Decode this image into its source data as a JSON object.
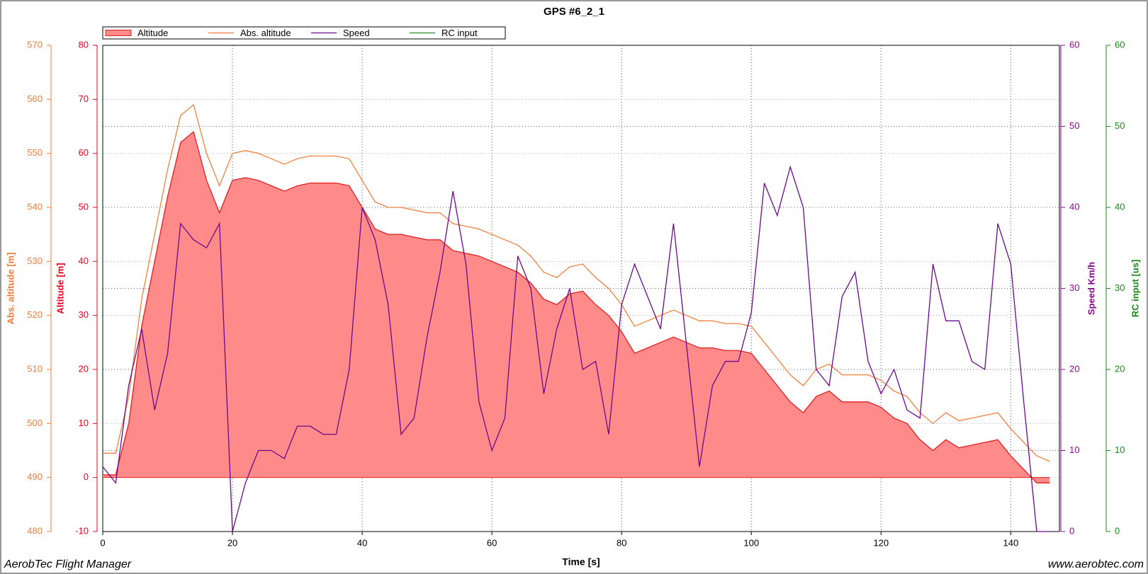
{
  "chart_data": {
    "type": "line",
    "title": "GPS #6_2_1",
    "xlabel": "Time [s]",
    "footer_left": "AerobTec Flight Manager",
    "footer_right": "www.aerobtec.com",
    "xlim": [
      0,
      147.5
    ],
    "xticks": [
      0,
      20,
      40,
      60,
      80,
      100,
      120,
      140
    ],
    "grid": true,
    "axes": [
      {
        "label": "Abs. altitude [m]",
        "lim": [
          480,
          570
        ],
        "ticks": [
          480,
          490,
          500,
          510,
          520,
          530,
          540,
          550,
          560,
          570
        ],
        "color": "#f07c3c",
        "side": "left"
      },
      {
        "label": "Altitude [m]",
        "lim": [
          -10,
          80
        ],
        "ticks": [
          -10,
          0,
          10,
          20,
          30,
          40,
          50,
          60,
          70,
          80
        ],
        "color": "#e8001c",
        "side": "left",
        "grid_color": "#d9a25a"
      },
      {
        "label": "Speed Km/h",
        "lim": [
          0,
          60
        ],
        "ticks": [
          0,
          10,
          20,
          30,
          40,
          50,
          60
        ],
        "color": "#8a0a8f",
        "side": "right",
        "grid_color": "#4f6f4f"
      },
      {
        "label": "RC input [us]",
        "lim": [
          0,
          60
        ],
        "ticks": [
          0,
          10,
          20,
          30,
          40,
          50,
          60
        ],
        "color": "#1a8a1a",
        "side": "right"
      }
    ],
    "x": [
      0,
      2,
      4,
      6,
      8,
      10,
      12,
      14,
      16,
      18,
      20,
      22,
      24,
      26,
      28,
      30,
      32,
      34,
      36,
      38,
      40,
      42,
      44,
      46,
      48,
      50,
      52,
      54,
      56,
      58,
      60,
      62,
      64,
      66,
      68,
      70,
      72,
      74,
      76,
      78,
      80,
      82,
      84,
      86,
      88,
      90,
      92,
      94,
      96,
      98,
      100,
      102,
      104,
      106,
      108,
      110,
      112,
      114,
      116,
      118,
      120,
      122,
      124,
      126,
      128,
      130,
      132,
      134,
      136,
      138,
      140,
      142,
      144,
      146
    ],
    "series": [
      {
        "name": "Altitude",
        "color": "#e02020",
        "fill": "#ff8a8a",
        "area": true,
        "axis": 1,
        "values": [
          0.5,
          0.5,
          10,
          28,
          40,
          52,
          62,
          64,
          55,
          49,
          55,
          55.5,
          55,
          54,
          53,
          54,
          54.5,
          54.5,
          54.5,
          54,
          50,
          46,
          45,
          45,
          44.5,
          44,
          44,
          42,
          41.5,
          41,
          40,
          39,
          38,
          36,
          33,
          32,
          34,
          34.5,
          32,
          30,
          27,
          23,
          24,
          25,
          26,
          25,
          24,
          24,
          23.5,
          23.5,
          23,
          20,
          17,
          14,
          12,
          15,
          16,
          14,
          14,
          14,
          13,
          11,
          10,
          7,
          5,
          7,
          5.5,
          6,
          6.5,
          7,
          4,
          1.5,
          -1,
          -1
        ]
      },
      {
        "name": "Abs. altitude",
        "color": "#f08040",
        "axis": 0,
        "values": [
          494.5,
          494.5,
          505,
          523,
          535,
          547,
          557,
          559,
          550,
          544,
          550,
          550.5,
          550,
          549,
          548,
          549,
          549.5,
          549.5,
          549.5,
          549,
          545,
          541,
          540,
          540,
          539.5,
          539,
          539,
          537,
          536.5,
          536,
          535,
          534,
          533,
          531,
          528,
          527,
          529,
          529.5,
          527,
          525,
          522,
          518,
          519,
          520,
          521,
          520,
          519,
          519,
          518.5,
          518.5,
          518,
          515,
          512,
          509,
          507,
          510,
          511,
          509,
          509,
          509,
          508,
          506,
          505,
          502,
          500,
          502,
          500.5,
          501,
          501.5,
          502,
          499,
          496.5,
          494,
          493
        ]
      },
      {
        "name": "Speed",
        "color": "#6a0a8a",
        "axis": 2,
        "values": [
          8,
          6,
          18,
          25,
          15,
          22,
          38,
          36,
          35,
          38,
          0,
          6,
          10,
          10,
          9,
          13,
          13,
          12,
          12,
          20,
          40,
          36,
          28,
          12,
          14,
          24,
          32,
          42,
          33,
          16,
          10,
          14,
          34,
          30,
          17,
          25,
          30,
          20,
          21,
          12,
          28,
          33,
          29,
          25,
          38,
          23,
          8,
          18,
          21,
          21,
          27,
          43,
          39,
          45,
          40,
          20,
          18,
          29,
          32,
          21,
          17,
          20,
          15,
          14,
          33,
          26,
          26,
          21,
          20,
          38,
          33,
          16,
          0,
          0
        ]
      },
      {
        "name": "RC input",
        "color": "#2a8a2a",
        "axis": 3,
        "values": [
          null,
          null,
          null,
          null,
          null,
          null,
          null,
          null,
          null,
          null,
          null,
          null,
          null,
          null,
          null,
          null,
          null,
          null,
          null,
          null,
          null,
          null,
          null,
          null,
          null,
          null,
          null,
          null,
          null,
          null,
          null,
          null,
          null,
          null,
          null,
          null,
          null,
          null,
          null,
          null,
          null,
          null,
          null,
          null,
          null,
          null,
          null,
          null,
          null,
          null,
          null,
          null,
          null,
          null,
          null,
          null,
          null,
          null,
          null,
          null,
          null,
          null,
          null,
          null,
          null,
          null,
          null,
          null,
          null,
          null,
          null,
          null,
          null,
          null
        ]
      }
    ]
  }
}
